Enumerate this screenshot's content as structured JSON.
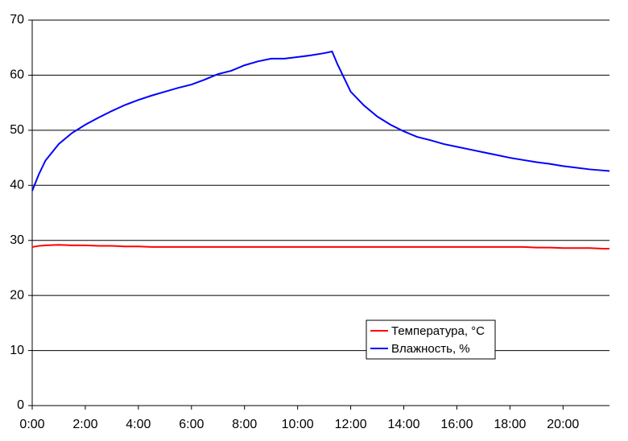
{
  "chart_data": {
    "type": "line",
    "x": [
      0,
      0.25,
      0.5,
      1,
      1.5,
      2,
      2.5,
      3,
      3.5,
      4,
      4.5,
      5,
      5.5,
      6,
      6.5,
      7,
      7.5,
      8,
      8.5,
      9,
      9.5,
      10,
      10.5,
      11,
      11.3,
      11.5,
      12,
      12.5,
      13,
      13.5,
      14,
      14.5,
      15,
      15.5,
      16,
      16.5,
      17,
      17.5,
      18,
      18.5,
      19,
      19.5,
      20,
      20.5,
      21,
      21.5,
      21.75
    ],
    "series": [
      {
        "name": "Температура, °C",
        "color": "#ff0000",
        "values": [
          28.8,
          29,
          29.1,
          29.2,
          29.1,
          29.1,
          29,
          29,
          28.9,
          28.9,
          28.8,
          28.8,
          28.8,
          28.8,
          28.8,
          28.8,
          28.8,
          28.8,
          28.8,
          28.8,
          28.8,
          28.8,
          28.8,
          28.8,
          28.8,
          28.8,
          28.8,
          28.8,
          28.8,
          28.8,
          28.8,
          28.8,
          28.8,
          28.8,
          28.8,
          28.8,
          28.8,
          28.8,
          28.8,
          28.8,
          28.7,
          28.7,
          28.6,
          28.6,
          28.6,
          28.5,
          28.5
        ]
      },
      {
        "name": "Влажность, %",
        "color": "#0000ff",
        "values": [
          39,
          42,
          44.5,
          47.5,
          49.5,
          51,
          52.3,
          53.5,
          54.6,
          55.5,
          56.3,
          57,
          57.7,
          58.3,
          59.2,
          60.2,
          60.8,
          61.8,
          62.5,
          63,
          63,
          63.3,
          63.6,
          64,
          64.3,
          62,
          57,
          54.5,
          52.5,
          51,
          49.8,
          48.8,
          48.2,
          47.5,
          47,
          46.5,
          46,
          45.5,
          45,
          44.6,
          44.2,
          43.9,
          43.5,
          43.2,
          42.9,
          42.7,
          42.6
        ]
      }
    ],
    "xlim": [
      0,
      21.75
    ],
    "xticks": [
      {
        "value": 0,
        "label": "0:00"
      },
      {
        "value": 2,
        "label": "2:00"
      },
      {
        "value": 4,
        "label": "4:00"
      },
      {
        "value": 6,
        "label": "6:00"
      },
      {
        "value": 8,
        "label": "8:00"
      },
      {
        "value": 10,
        "label": "10:00"
      },
      {
        "value": 12,
        "label": "12:00"
      },
      {
        "value": 14,
        "label": "14:00"
      },
      {
        "value": 16,
        "label": "16:00"
      },
      {
        "value": 18,
        "label": "18:00"
      },
      {
        "value": 20,
        "label": "20:00"
      }
    ],
    "ylim": [
      0,
      70
    ],
    "yticks": [
      0,
      10,
      20,
      30,
      40,
      50,
      60,
      70
    ],
    "grid": true,
    "legend": "lower right"
  }
}
